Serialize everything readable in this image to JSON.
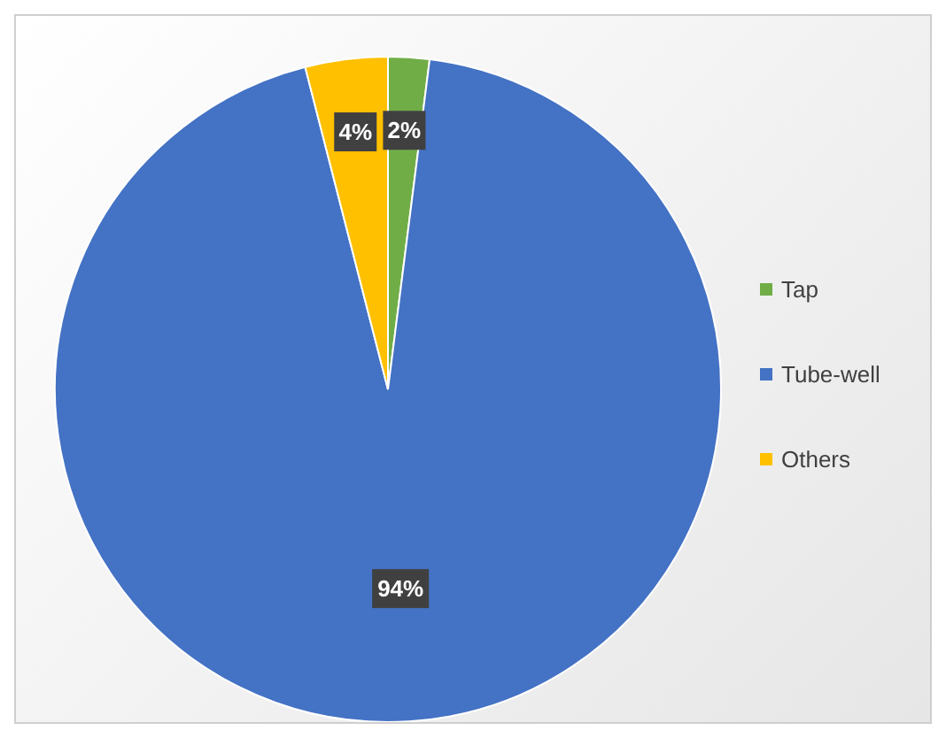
{
  "chart_data": {
    "type": "pie",
    "categories": [
      "Tap",
      "Tube-well",
      "Others"
    ],
    "values": [
      2,
      94,
      4
    ],
    "value_labels": [
      "2%",
      "94%",
      "4%"
    ],
    "colors": [
      "#70ad47",
      "#4472c4",
      "#ffc000"
    ],
    "legend": "right"
  }
}
